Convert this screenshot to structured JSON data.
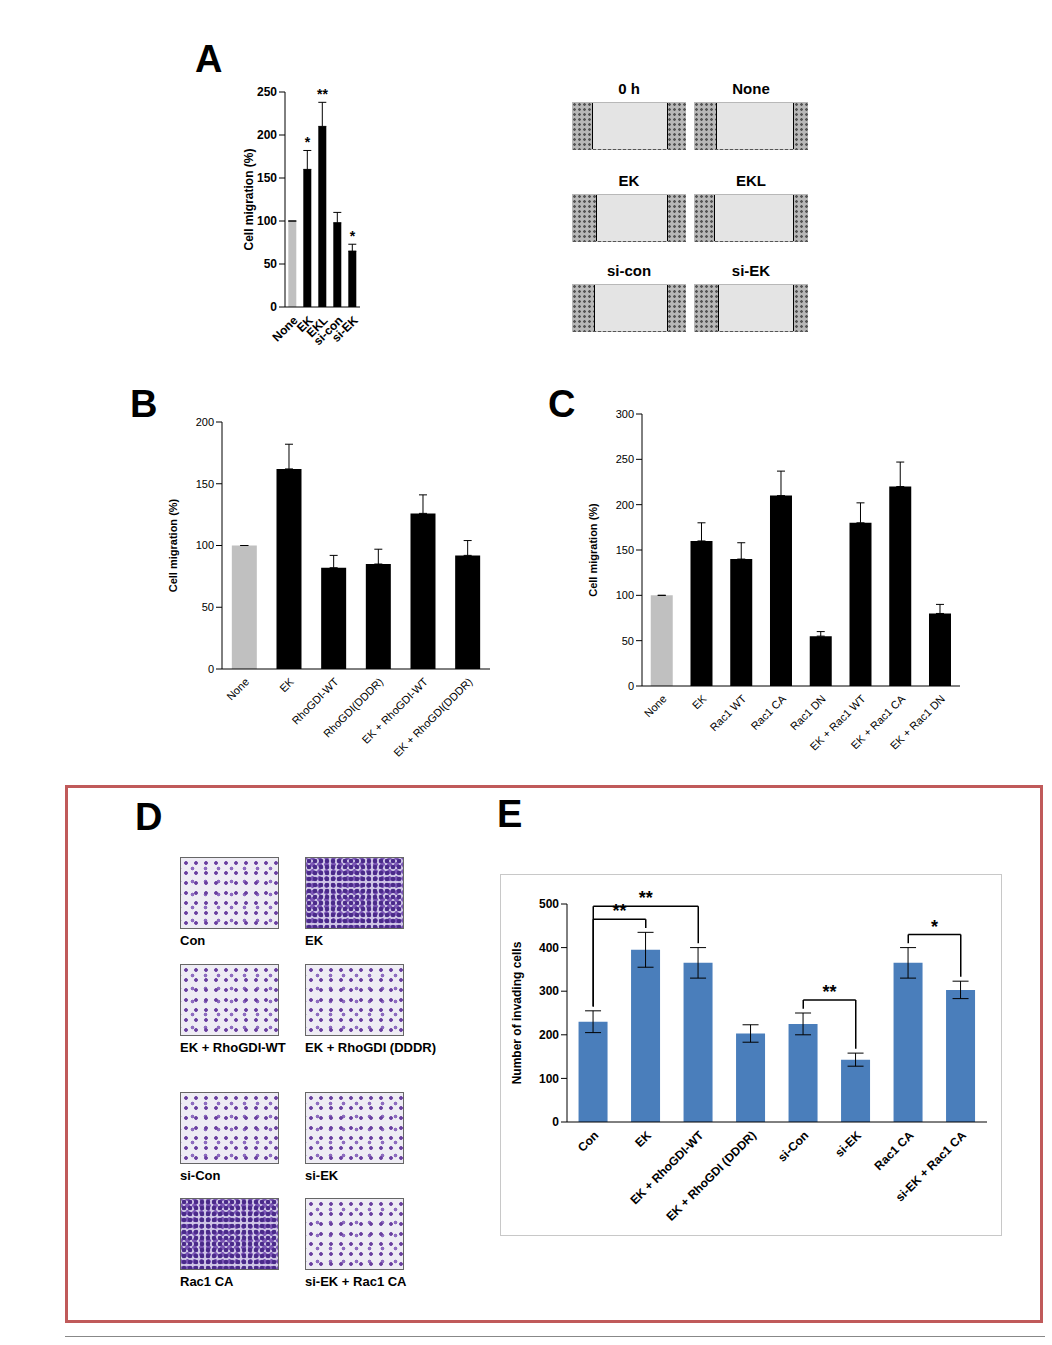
{
  "chart_data": [
    {
      "panel": "A",
      "type": "bar",
      "y_label": "Cell migration (%)",
      "categories": [
        "None",
        "EK",
        "EKL",
        "si-con",
        "si-EK"
      ],
      "values": [
        100,
        160,
        210,
        98,
        65
      ],
      "errors": [
        0,
        22,
        28,
        12,
        8
      ],
      "colors": [
        "#c0c0c0",
        "#000000",
        "#000000",
        "#000000",
        "#000000"
      ],
      "ylim": [
        0,
        250
      ],
      "yticks": [
        0,
        50,
        100,
        150,
        200,
        250
      ],
      "grid": false,
      "annotations": [
        {
          "category": "EK",
          "text": "*"
        },
        {
          "category": "EKL",
          "text": "**"
        },
        {
          "category": "si-EK",
          "text": "*"
        }
      ]
    },
    {
      "panel": "B",
      "type": "bar",
      "y_label": "Cell migration (%)",
      "categories": [
        "None",
        "EK",
        "RhoGDI-WT",
        "RhoGDI(DDDR)",
        "EK + RhoGDI-WT",
        "EK + RhoGDI(DDDR)"
      ],
      "values": [
        100,
        162,
        82,
        85,
        126,
        92
      ],
      "errors": [
        0,
        20,
        10,
        12,
        15,
        12
      ],
      "colors": [
        "#c0c0c0",
        "#000000",
        "#000000",
        "#000000",
        "#000000",
        "#000000"
      ],
      "ylim": [
        0,
        200
      ],
      "yticks": [
        0,
        50,
        100,
        150,
        200
      ],
      "grid": false
    },
    {
      "panel": "C",
      "type": "bar",
      "y_label": "Cell migration (%)",
      "categories": [
        "None",
        "EK",
        "Rac1 WT",
        "Rac1 CA",
        "Rac1 DN",
        "EK + Rac1 WT",
        "EK + Rac1 CA",
        "EK + Rac1 DN"
      ],
      "values": [
        100,
        160,
        140,
        210,
        55,
        180,
        220,
        80
      ],
      "errors": [
        0,
        20,
        18,
        27,
        5,
        22,
        27,
        10
      ],
      "colors": [
        "#c0c0c0",
        "#000000",
        "#000000",
        "#000000",
        "#000000",
        "#000000",
        "#000000",
        "#000000"
      ],
      "ylim": [
        0,
        300
      ],
      "yticks": [
        0,
        50,
        100,
        150,
        200,
        250,
        300
      ],
      "grid": false
    },
    {
      "panel": "E",
      "type": "bar",
      "y_label": "Number of invading cells",
      "categories": [
        "Con",
        "EK",
        "EK + RhoGDI-WT",
        "EK + RhoGDI (DDDR)",
        "si-Con",
        "si-EK",
        "Rac1 CA",
        "si-EK + Rac1 CA"
      ],
      "values": [
        230,
        395,
        365,
        203,
        225,
        143,
        365,
        303
      ],
      "errors": [
        25,
        40,
        35,
        20,
        25,
        15,
        35,
        20
      ],
      "color": "#4a7ebb",
      "ylim": [
        0,
        500
      ],
      "yticks": [
        0,
        100,
        200,
        300,
        400,
        500
      ],
      "grid": false,
      "annotations": [
        {
          "from": "Con",
          "to": "EK",
          "text": "**"
        },
        {
          "from": "Con",
          "to": "EK + RhoGDI-WT",
          "text": "**"
        },
        {
          "from": "si-Con",
          "to": "si-EK",
          "text": "**"
        },
        {
          "from": "Rac1 CA",
          "to": "si-EK + Rac1 CA",
          "text": "*"
        }
      ]
    }
  ],
  "images": [
    {
      "panel": "A",
      "labels": [
        "0 h",
        "None",
        "EK",
        "EKL",
        "si-con",
        "si-EK"
      ]
    },
    {
      "panel": "D",
      "labels": [
        "Con",
        "EK",
        "EK + RhoGDI-WT",
        "EK + RhoGDI (DDDR)",
        "si-Con",
        "si-EK",
        "Rac1 CA",
        "si-EK + Rac1 CA"
      ]
    }
  ]
}
